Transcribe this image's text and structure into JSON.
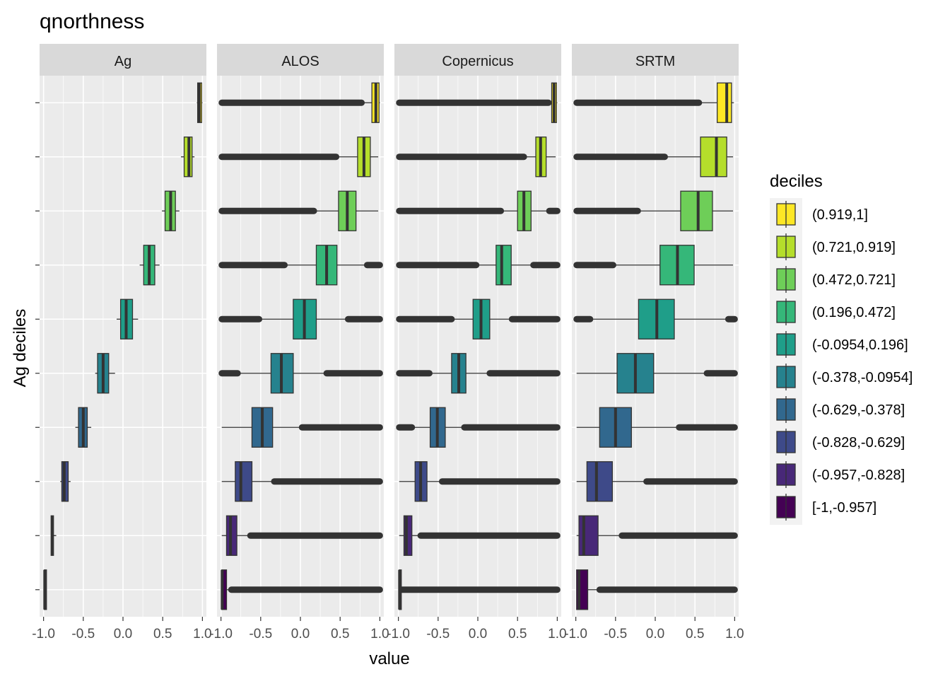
{
  "chart_data": {
    "type": "boxplot",
    "title": "qnorthness",
    "xlabel": "value",
    "ylabel": "Ag deciles",
    "xlim": [
      -1.05,
      1.05
    ],
    "x_ticks": [
      -1.0,
      -0.5,
      0.0,
      0.5,
      1.0
    ],
    "x_tick_labels": [
      "-1.0",
      "-0.5",
      "0.0",
      "0.5",
      "1.0"
    ],
    "grid": true,
    "legend": {
      "title": "deciles",
      "position": "right",
      "entries": [
        {
          "label": "(0.919,1]",
          "color": "#FDE725"
        },
        {
          "label": "(0.721,0.919]",
          "color": "#B5DE2B"
        },
        {
          "label": "(0.472,0.721]",
          "color": "#6ECE58"
        },
        {
          "label": "(0.196,0.472]",
          "color": "#35B779"
        },
        {
          "label": "(-0.0954,0.196]",
          "color": "#1F9E89"
        },
        {
          "label": "(-0.378,-0.0954]",
          "color": "#26828E"
        },
        {
          "label": "(-0.629,-0.378]",
          "color": "#31688E"
        },
        {
          "label": "(-0.828,-0.629]",
          "color": "#3E4A89"
        },
        {
          "label": "(-0.957,-0.828]",
          "color": "#482878"
        },
        {
          "label": "[-1,-0.957]",
          "color": "#440154"
        }
      ]
    },
    "categories": [
      "[-1,-0.957]",
      "(-0.957,-0.828]",
      "(-0.828,-0.629]",
      "(-0.629,-0.378]",
      "(-0.378,-0.0954]",
      "(-0.0954,0.196]",
      "(0.196,0.472]",
      "(0.472,0.721]",
      "(0.721,0.919]",
      "(0.919,1]"
    ],
    "colors": [
      "#440154",
      "#482878",
      "#3E4A89",
      "#31688E",
      "#26828E",
      "#1F9E89",
      "#35B779",
      "#6ECE58",
      "#B5DE2B",
      "#FDE725"
    ],
    "panels": [
      {
        "name": "Ag",
        "boxes": [
          {
            "wmin": -0.99,
            "q1": -0.99,
            "med": -0.985,
            "q3": -0.98,
            "wmax": -0.975,
            "outliers": []
          },
          {
            "wmin": -0.86,
            "q1": -0.905,
            "med": -0.89,
            "q3": -0.875,
            "wmax": -0.84,
            "outliers": []
          },
          {
            "wmin": -0.79,
            "q1": -0.77,
            "med": -0.74,
            "q3": -0.69,
            "wmax": -0.66,
            "outliers": []
          },
          {
            "wmin": -0.6,
            "q1": -0.56,
            "med": -0.5,
            "q3": -0.45,
            "wmax": -0.4,
            "outliers": []
          },
          {
            "wmin": -0.35,
            "q1": -0.32,
            "med": -0.25,
            "q3": -0.18,
            "wmax": -0.1,
            "outliers": []
          },
          {
            "wmin": -0.08,
            "q1": -0.03,
            "med": 0.04,
            "q3": 0.12,
            "wmax": 0.19,
            "outliers": []
          },
          {
            "wmin": 0.21,
            "q1": 0.26,
            "med": 0.33,
            "q3": 0.4,
            "wmax": 0.46,
            "outliers": []
          },
          {
            "wmin": 0.49,
            "q1": 0.53,
            "med": 0.6,
            "q3": 0.66,
            "wmax": 0.71,
            "outliers": []
          },
          {
            "wmin": 0.73,
            "q1": 0.77,
            "med": 0.83,
            "q3": 0.87,
            "wmax": 0.9,
            "outliers": []
          },
          {
            "wmin": 0.93,
            "q1": 0.94,
            "med": 0.96,
            "q3": 0.99,
            "wmax": 1.0,
            "outliers": []
          }
        ]
      },
      {
        "name": "ALOS",
        "boxes": [
          {
            "wmin": -0.99,
            "q1": -0.99,
            "med": -0.985,
            "q3": -0.93,
            "wmax": -0.87,
            "outliers": [
              [
                -0.87,
                1.0
              ]
            ]
          },
          {
            "wmin": -0.99,
            "q1": -0.93,
            "med": -0.88,
            "q3": -0.8,
            "wmax": -0.63,
            "outliers": [
              [
                -0.63,
                1.0
              ]
            ]
          },
          {
            "wmin": -0.99,
            "q1": -0.82,
            "med": -0.75,
            "q3": -0.61,
            "wmax": -0.33,
            "outliers": [
              [
                -0.33,
                1.0
              ]
            ]
          },
          {
            "wmin": -0.99,
            "q1": -0.61,
            "med": -0.48,
            "q3": -0.35,
            "wmax": 0.02,
            "outliers": [
              [
                0.02,
                1.0
              ]
            ]
          },
          {
            "wmin": -0.83,
            "q1": -0.37,
            "med": -0.24,
            "q3": -0.09,
            "wmax": 0.33,
            "outliers": [
              [
                -0.99,
                -0.79
              ],
              [
                0.33,
                1.0
              ]
            ]
          },
          {
            "wmin": -0.5,
            "q1": -0.09,
            "med": 0.05,
            "q3": 0.2,
            "wmax": 0.6,
            "outliers": [
              [
                -0.99,
                -0.52
              ],
              [
                0.6,
                1.0
              ]
            ]
          },
          {
            "wmin": -0.2,
            "q1": 0.2,
            "med": 0.33,
            "q3": 0.46,
            "wmax": 0.84,
            "outliers": [
              [
                -0.99,
                -0.2
              ],
              [
                0.84,
                1.0
              ]
            ]
          },
          {
            "wmin": 0.17,
            "q1": 0.48,
            "med": 0.59,
            "q3": 0.7,
            "wmax": 0.98,
            "outliers": [
              [
                -0.99,
                0.17
              ]
            ]
          },
          {
            "wmin": 0.45,
            "q1": 0.72,
            "med": 0.8,
            "q3": 0.88,
            "wmax": 0.98,
            "outliers": [
              [
                -0.99,
                0.45
              ]
            ]
          },
          {
            "wmin": 0.77,
            "q1": 0.9,
            "med": 0.95,
            "q3": 0.99,
            "wmax": 1.0,
            "outliers": [
              [
                -0.99,
                0.77
              ]
            ]
          }
        ]
      },
      {
        "name": "Copernicus",
        "boxes": [
          {
            "wmin": -0.99,
            "q1": -0.99,
            "med": -0.985,
            "q3": -0.98,
            "wmax": -0.96,
            "outliers": [
              [
                -0.96,
                1.0
              ]
            ]
          },
          {
            "wmin": -0.99,
            "q1": -0.93,
            "med": -0.9,
            "q3": -0.83,
            "wmax": -0.72,
            "outliers": [
              [
                -0.72,
                1.0
              ]
            ]
          },
          {
            "wmin": -0.99,
            "q1": -0.79,
            "med": -0.72,
            "q3": -0.64,
            "wmax": -0.45,
            "outliers": [
              [
                -0.45,
                1.0
              ]
            ]
          },
          {
            "wmin": -0.83,
            "q1": -0.6,
            "med": -0.51,
            "q3": -0.41,
            "wmax": -0.17,
            "outliers": [
              [
                -0.99,
                -0.83
              ],
              [
                -0.17,
                1.0
              ]
            ]
          },
          {
            "wmin": -0.61,
            "q1": -0.33,
            "med": -0.24,
            "q3": -0.15,
            "wmax": 0.15,
            "outliers": [
              [
                -0.99,
                -0.61
              ],
              [
                0.15,
                1.0
              ]
            ]
          },
          {
            "wmin": -0.33,
            "q1": -0.06,
            "med": 0.04,
            "q3": 0.15,
            "wmax": 0.43,
            "outliers": [
              [
                -0.99,
                -0.33
              ],
              [
                0.43,
                1.0
              ]
            ]
          },
          {
            "wmin": -0.02,
            "q1": 0.23,
            "med": 0.3,
            "q3": 0.42,
            "wmax": 0.7,
            "outliers": [
              [
                -0.99,
                -0.02
              ],
              [
                0.7,
                1.0
              ]
            ]
          },
          {
            "wmin": 0.29,
            "q1": 0.5,
            "med": 0.58,
            "q3": 0.67,
            "wmax": 0.9,
            "outliers": [
              [
                -0.99,
                0.29
              ],
              [
                0.9,
                1.0
              ]
            ]
          },
          {
            "wmin": 0.58,
            "q1": 0.73,
            "med": 0.79,
            "q3": 0.86,
            "wmax": 0.98,
            "outliers": [
              [
                -0.99,
                0.58
              ]
            ]
          },
          {
            "wmin": 0.89,
            "q1": 0.93,
            "med": 0.96,
            "q3": 0.99,
            "wmax": 1.0,
            "outliers": [
              [
                -0.99,
                0.89
              ]
            ]
          }
        ]
      },
      {
        "name": "SRTM",
        "boxes": [
          {
            "wmin": -0.99,
            "q1": -0.99,
            "med": -0.96,
            "q3": -0.85,
            "wmax": -0.7,
            "outliers": [
              [
                -0.7,
                1.0
              ]
            ]
          },
          {
            "wmin": -0.99,
            "q1": -0.96,
            "med": -0.9,
            "q3": -0.72,
            "wmax": -0.42,
            "outliers": [
              [
                -0.42,
                1.0
              ]
            ]
          },
          {
            "wmin": -0.99,
            "q1": -0.86,
            "med": -0.74,
            "q3": -0.54,
            "wmax": -0.11,
            "outliers": [
              [
                -0.11,
                1.0
              ]
            ]
          },
          {
            "wmin": -0.99,
            "q1": -0.7,
            "med": -0.5,
            "q3": -0.3,
            "wmax": 0.3,
            "outliers": [
              [
                0.3,
                1.0
              ]
            ]
          },
          {
            "wmin": -0.99,
            "q1": -0.48,
            "med": -0.25,
            "q3": -0.02,
            "wmax": 0.65,
            "outliers": [
              [
                0.65,
                1.0
              ]
            ]
          },
          {
            "wmin": -0.82,
            "q1": -0.21,
            "med": 0.02,
            "q3": 0.24,
            "wmax": 0.92,
            "outliers": [
              [
                -0.99,
                -0.82
              ],
              [
                0.92,
                1.0
              ]
            ]
          },
          {
            "wmin": -0.53,
            "q1": 0.06,
            "med": 0.28,
            "q3": 0.49,
            "wmax": 0.98,
            "outliers": [
              [
                -0.99,
                -0.53
              ]
            ]
          },
          {
            "wmin": -0.22,
            "q1": 0.32,
            "med": 0.54,
            "q3": 0.72,
            "wmax": 0.98,
            "outliers": [
              [
                -0.99,
                -0.22
              ]
            ]
          },
          {
            "wmin": 0.12,
            "q1": 0.57,
            "med": 0.77,
            "q3": 0.9,
            "wmax": 0.98,
            "outliers": [
              [
                -0.99,
                0.12
              ]
            ]
          },
          {
            "wmin": 0.55,
            "q1": 0.78,
            "med": 0.9,
            "q3": 0.96,
            "wmax": 0.99,
            "outliers": [
              [
                -0.99,
                0.55
              ]
            ]
          }
        ]
      }
    ]
  }
}
